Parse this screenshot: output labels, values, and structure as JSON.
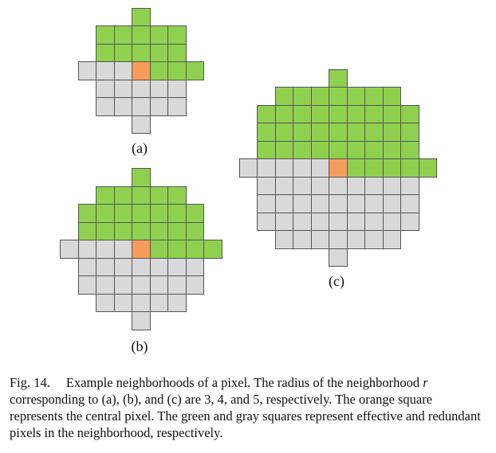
{
  "colors": {
    "effective": "#8fd14f",
    "redundant": "#d9d9d9",
    "central": "#f79d5a",
    "border": "#555555"
  },
  "panels": [
    {
      "id": "a",
      "label": "(a)",
      "radius": 3
    },
    {
      "id": "b",
      "label": "(b)",
      "radius": 4
    },
    {
      "id": "c",
      "label": "(c)",
      "radius": 5
    }
  ],
  "caption": {
    "fig_number": "Fig. 14.",
    "text_before_var": "Example neighborhoods of a pixel. The radius of the neighborhood",
    "variable": "r",
    "text_after_var": "corresponding to (a), (b), and (c) are 3, 4, and 5, respectively. The orange square represents the central pixel. The green and gray squares represent effective and redundant pixels in the neighborhood, respectively."
  }
}
